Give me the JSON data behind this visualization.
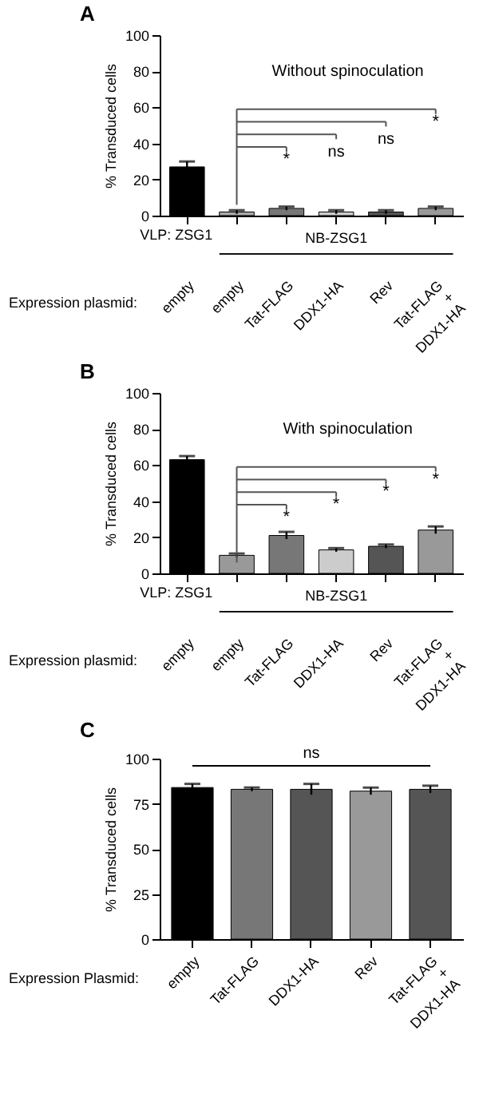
{
  "chart_data": [
    {
      "type": "bar",
      "title": "A",
      "ylabel": "% Transduced cells",
      "xlabel": "Expression plasmid:",
      "categories": [
        "empty",
        "empty",
        "Tat-FLAG",
        "DDX1-HA",
        "Rev",
        "Tat-FLAG + DDX1-HA"
      ],
      "values": [
        27,
        2,
        4,
        2,
        2,
        4
      ],
      "errors": [
        3,
        1,
        1,
        1,
        1,
        1
      ],
      "colors": [
        "#000000",
        "#aaaaaa",
        "#777777",
        "#cccccc",
        "#555555",
        "#999999"
      ],
      "ylim": [
        0,
        100
      ],
      "yticks": [
        0,
        20,
        40,
        60,
        80,
        100
      ],
      "annotations": [
        "Without spinoculation",
        "VLP: ZSG1",
        "NB-ZSG1",
        "*",
        "ns",
        "ns",
        "*"
      ]
    },
    {
      "type": "bar",
      "title": "B",
      "ylabel": "% Transduced cells",
      "xlabel": "Expression plasmid:",
      "categories": [
        "empty",
        "empty",
        "Tat-FLAG",
        "DDX1-HA",
        "Rev",
        "Tat-FLAG + DDX1-HA"
      ],
      "values": [
        63,
        10,
        21,
        13,
        15,
        24
      ],
      "errors": [
        2,
        1,
        2,
        1,
        1,
        2
      ],
      "colors": [
        "#000000",
        "#999999",
        "#777777",
        "#cccccc",
        "#555555",
        "#999999"
      ],
      "ylim": [
        0,
        100
      ],
      "yticks": [
        0,
        20,
        40,
        60,
        80,
        100
      ],
      "annotations": [
        "With spinoculation",
        "VLP: ZSG1",
        "NB-ZSG1",
        "*",
        "*",
        "*",
        "*"
      ]
    },
    {
      "type": "bar",
      "title": "C",
      "ylabel": "% Transduced cells",
      "xlabel": "Expression Plasmid:",
      "categories": [
        "empty",
        "Tat-FLAG",
        "DDX1-HA",
        "Rev",
        "Tat-FLAG + DDX1-HA"
      ],
      "values": [
        84,
        83,
        83,
        82,
        83
      ],
      "errors": [
        2,
        1,
        3,
        2,
        2
      ],
      "colors": [
        "#000000",
        "#777777",
        "#555555",
        "#999999",
        "#555555"
      ],
      "ylim": [
        0,
        100
      ],
      "yticks": [
        0,
        25,
        50,
        75,
        100
      ],
      "ref_lines": [
        {
          "axis": "y",
          "value": 96,
          "label": "ns"
        }
      ]
    }
  ]
}
